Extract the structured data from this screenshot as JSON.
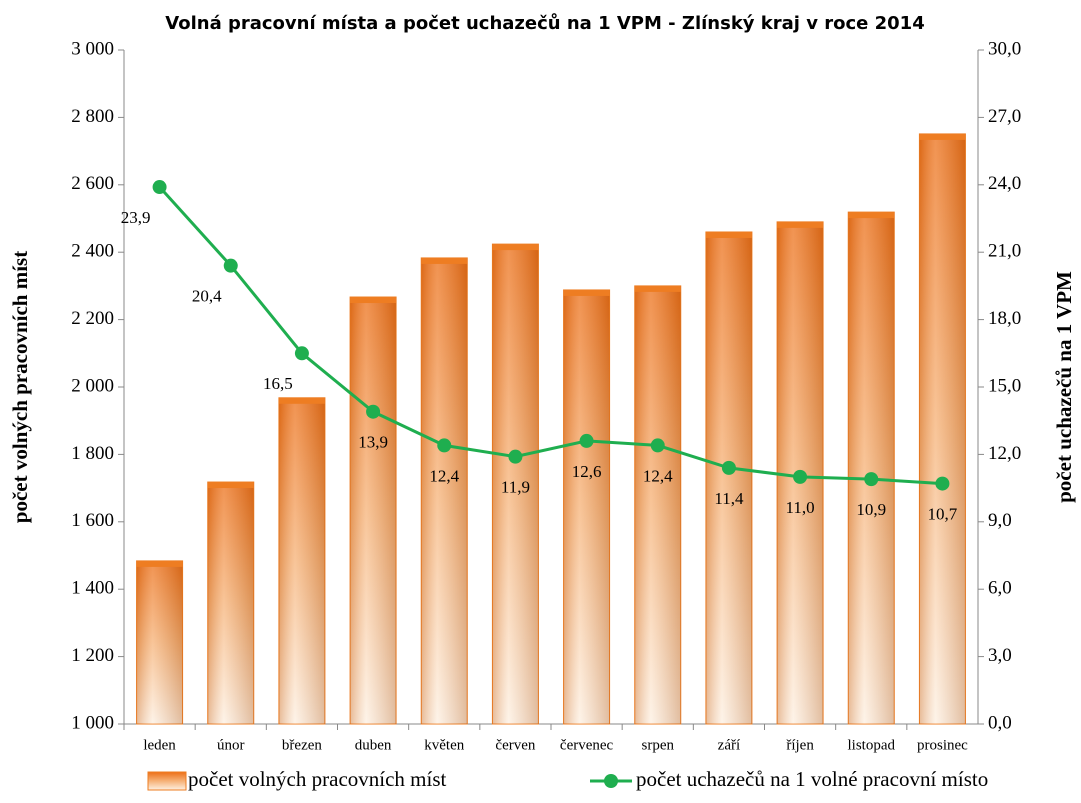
{
  "chart_data": {
    "type": "bar",
    "title": "Volná pracovní místa a počet uchazečů na 1 VPM - Zlínský kraj v roce 2014",
    "y_label": "počet volných pracovních míst",
    "y2_label": "počet uchazečů na 1 VPM",
    "categories": [
      "leden",
      "únor",
      "březen",
      "duben",
      "květen",
      "červen",
      "červenec",
      "srpen",
      "září",
      "říjen",
      "listopad",
      "prosinec"
    ],
    "series": [
      {
        "name": "počet volných pracovních míst",
        "type": "bar",
        "color": "#ee7d22",
        "values": [
          1484,
          1718,
          1968,
          2267,
          2383,
          2424,
          2288,
          2300,
          2460,
          2490,
          2519,
          2751
        ]
      },
      {
        "name": "počet uchazečů na 1 volné pracovní místo",
        "type": "line",
        "axis": "y2",
        "color": "#1fae4f",
        "values": [
          23.9,
          20.4,
          16.5,
          13.9,
          12.4,
          11.9,
          12.6,
          12.4,
          11.4,
          11.0,
          10.9,
          10.7
        ],
        "value_labels": [
          "23,9",
          "20,4",
          "16,5",
          "13,9",
          "12,4",
          "11,9",
          "12,6",
          "12,4",
          "11,4",
          "11,0",
          "10,9",
          "10,7"
        ]
      }
    ],
    "ylim": [
      1000,
      3000
    ],
    "yticks": [
      {
        "value": 1000,
        "label": "1 000"
      },
      {
        "value": 1200,
        "label": "1 200"
      },
      {
        "value": 1400,
        "label": "1 400"
      },
      {
        "value": 1600,
        "label": "1 600"
      },
      {
        "value": 1800,
        "label": "1 800"
      },
      {
        "value": 2000,
        "label": "2 000"
      },
      {
        "value": 2200,
        "label": "2 200"
      },
      {
        "value": 2400,
        "label": "2 400"
      },
      {
        "value": 2600,
        "label": "2 600"
      },
      {
        "value": 2800,
        "label": "2 800"
      },
      {
        "value": 3000,
        "label": "3 000"
      }
    ],
    "y2lim": [
      0,
      30
    ],
    "y2ticks": [
      {
        "value": 0,
        "label": "0,0"
      },
      {
        "value": 3,
        "label": "3,0"
      },
      {
        "value": 6,
        "label": "6,0"
      },
      {
        "value": 9,
        "label": "9,0"
      },
      {
        "value": 12,
        "label": "12,0"
      },
      {
        "value": 15,
        "label": "15,0"
      },
      {
        "value": 18,
        "label": "18,0"
      },
      {
        "value": 21,
        "label": "21,0"
      },
      {
        "value": 24,
        "label": "24,0"
      },
      {
        "value": 27,
        "label": "27,0"
      },
      {
        "value": 30,
        "label": "30,0"
      }
    ],
    "legend": "bottom"
  }
}
